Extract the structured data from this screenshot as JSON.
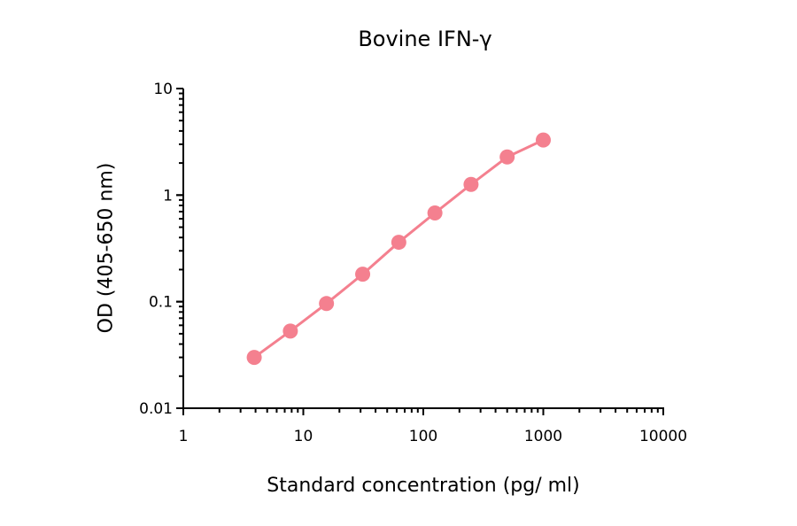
{
  "chart_data": {
    "type": "line",
    "title": "Bovine IFN-γ",
    "xlabel": "Standard concentration (pg/ ml)",
    "ylabel": "OD (405-650 nm)",
    "xscale": "log",
    "yscale": "log",
    "xlim": [
      1,
      10000
    ],
    "ylim": [
      0.01,
      10
    ],
    "x_ticks": [
      "1",
      "10",
      "100",
      "1000",
      "10000"
    ],
    "y_ticks": [
      "0.01",
      "0.1",
      "1",
      "10"
    ],
    "grid": false,
    "legend": null,
    "series": [
      {
        "name": "Bovine IFN-γ",
        "color": "#f4808f",
        "x": [
          3.9,
          7.8,
          15.6,
          31.25,
          62.5,
          125,
          250,
          500,
          1000
        ],
        "y": [
          0.03,
          0.053,
          0.096,
          0.181,
          0.361,
          0.68,
          1.26,
          2.28,
          3.29
        ]
      }
    ]
  }
}
